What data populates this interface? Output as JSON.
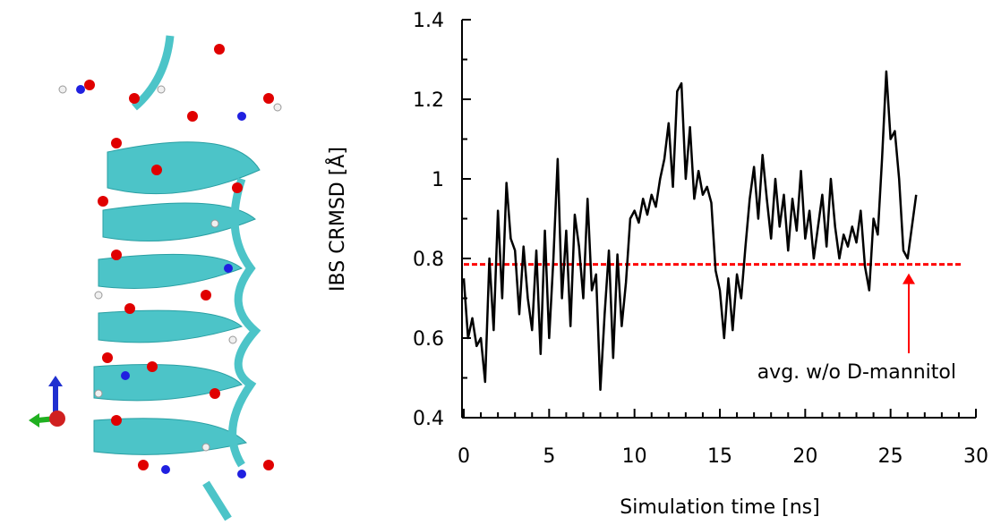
{
  "chart_data": {
    "type": "line",
    "xlabel": "Simulation time [ns]",
    "ylabel": "IBS CRMSD [Å]",
    "annotation": "avg. w/o D-mannitol",
    "reference_line": {
      "value": 0.785,
      "color": "#ff0000"
    },
    "xlim": [
      0,
      30
    ],
    "ylim": [
      0.4,
      1.4
    ],
    "xticks": [
      0,
      5,
      10,
      15,
      20,
      25,
      30
    ],
    "yticks": [
      0.4,
      0.6,
      0.8,
      1,
      1.2,
      1.4
    ],
    "xminorticks": [
      1,
      2,
      3,
      4,
      6,
      7,
      8,
      9,
      11,
      12,
      13,
      14,
      16,
      17,
      18,
      19,
      21,
      22,
      23,
      24,
      26,
      27,
      28,
      29
    ],
    "yminorticks": [
      0.5,
      0.7,
      0.9,
      1.1,
      1.3
    ],
    "series": [
      {
        "color": "#000000",
        "x": [
          0,
          0.25,
          0.5,
          0.75,
          1,
          1.25,
          1.5,
          1.75,
          2,
          2.25,
          2.5,
          2.75,
          3,
          3.25,
          3.5,
          3.75,
          4,
          4.25,
          4.5,
          4.75,
          5,
          5.25,
          5.5,
          5.75,
          6,
          6.25,
          6.5,
          6.75,
          7,
          7.25,
          7.5,
          7.75,
          8,
          8.25,
          8.5,
          8.75,
          9,
          9.25,
          9.5,
          9.75,
          10,
          10.25,
          10.5,
          10.75,
          11,
          11.25,
          11.5,
          11.75,
          12,
          12.25,
          12.5,
          12.75,
          13,
          13.25,
          13.5,
          13.75,
          14,
          14.25,
          14.5,
          14.75,
          15,
          15.25,
          15.5,
          15.75,
          16,
          16.25,
          16.5,
          16.75,
          17,
          17.25,
          17.5,
          17.75,
          18,
          18.25,
          18.5,
          18.75,
          19,
          19.25,
          19.5,
          19.75,
          20,
          20.25,
          20.5,
          20.75,
          21,
          21.25,
          21.5,
          21.75,
          22,
          22.25,
          22.5,
          22.75,
          23,
          23.25,
          23.5,
          23.75,
          24,
          24.25,
          24.5,
          24.75,
          25,
          25.25,
          25.5,
          25.75,
          26,
          26.25,
          26.5
        ],
        "values": [
          0.75,
          0.6,
          0.65,
          0.58,
          0.6,
          0.49,
          0.8,
          0.62,
          0.92,
          0.7,
          0.99,
          0.85,
          0.82,
          0.66,
          0.83,
          0.7,
          0.62,
          0.82,
          0.56,
          0.87,
          0.6,
          0.8,
          1.05,
          0.7,
          0.87,
          0.63,
          0.91,
          0.83,
          0.7,
          0.95,
          0.72,
          0.76,
          0.47,
          0.66,
          0.82,
          0.55,
          0.81,
          0.63,
          0.74,
          0.9,
          0.92,
          0.89,
          0.95,
          0.91,
          0.96,
          0.93,
          1.0,
          1.05,
          1.14,
          0.98,
          1.22,
          1.24,
          1.0,
          1.13,
          0.95,
          1.02,
          0.96,
          0.98,
          0.94,
          0.77,
          0.72,
          0.6,
          0.75,
          0.62,
          0.76,
          0.7,
          0.83,
          0.95,
          1.03,
          0.9,
          1.06,
          0.95,
          0.85,
          1.0,
          0.88,
          0.96,
          0.82,
          0.95,
          0.87,
          1.02,
          0.85,
          0.92,
          0.8,
          0.88,
          0.96,
          0.83,
          1.0,
          0.88,
          0.8,
          0.86,
          0.83,
          0.88,
          0.84,
          0.92,
          0.78,
          0.72,
          0.9,
          0.86,
          1.05,
          1.27,
          1.1,
          1.12,
          1.0,
          0.82,
          0.8,
          0.88,
          0.96
        ]
      }
    ]
  }
}
